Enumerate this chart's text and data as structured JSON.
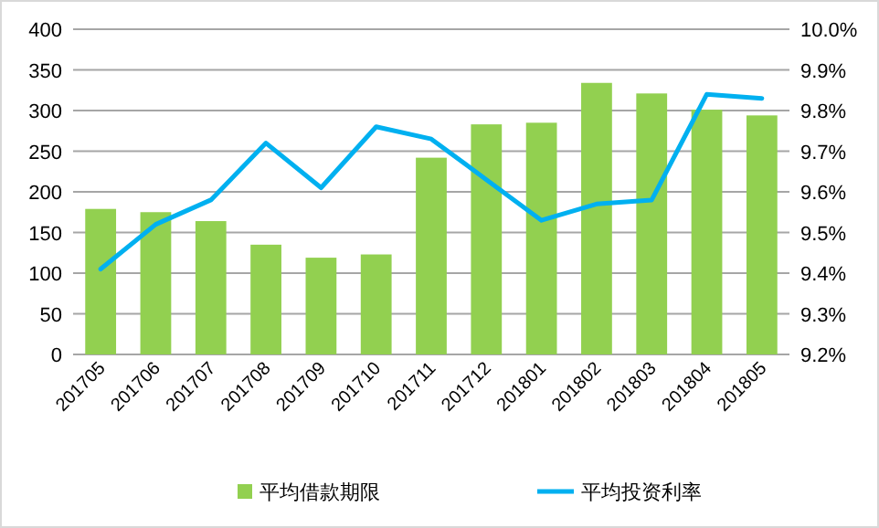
{
  "chart_data": {
    "type": "bar",
    "categories": [
      "201705",
      "201706",
      "201707",
      "201708",
      "201709",
      "201710",
      "201711",
      "201712",
      "201801",
      "201802",
      "201803",
      "201804",
      "201805"
    ],
    "series": [
      {
        "name": "平均借款期限",
        "color": "#92d050",
        "values": [
          179,
          175,
          164,
          135,
          119,
          123,
          242,
          283,
          285,
          334,
          321,
          301,
          294
        ]
      },
      {
        "name": "平均投资利率",
        "type": "line",
        "axis": "y2",
        "color": "#00b0f0",
        "values": [
          9.41,
          9.52,
          9.58,
          9.72,
          9.61,
          9.76,
          9.73,
          9.63,
          9.53,
          9.57,
          9.58,
          9.84,
          9.83
        ]
      }
    ],
    "ylim": [
      0,
      400
    ],
    "yticks": [
      0,
      50,
      100,
      150,
      200,
      250,
      300,
      350,
      400
    ],
    "y2lim": [
      9.2,
      10.0
    ],
    "y2ticks": [
      {
        "value": 9.2,
        "label": "9.2%"
      },
      {
        "value": 9.3,
        "label": "9.3%"
      },
      {
        "value": 9.4,
        "label": "9.4%"
      },
      {
        "value": 9.5,
        "label": "9.5%"
      },
      {
        "value": 9.6,
        "label": "9.6%"
      },
      {
        "value": 9.7,
        "label": "9.7%"
      },
      {
        "value": 9.8,
        "label": "9.8%"
      },
      {
        "value": 9.9,
        "label": "9.9%"
      },
      {
        "value": 10.0,
        "label": "10.0%"
      }
    ],
    "grid": "y",
    "legend": "bottom",
    "marker": "none"
  }
}
